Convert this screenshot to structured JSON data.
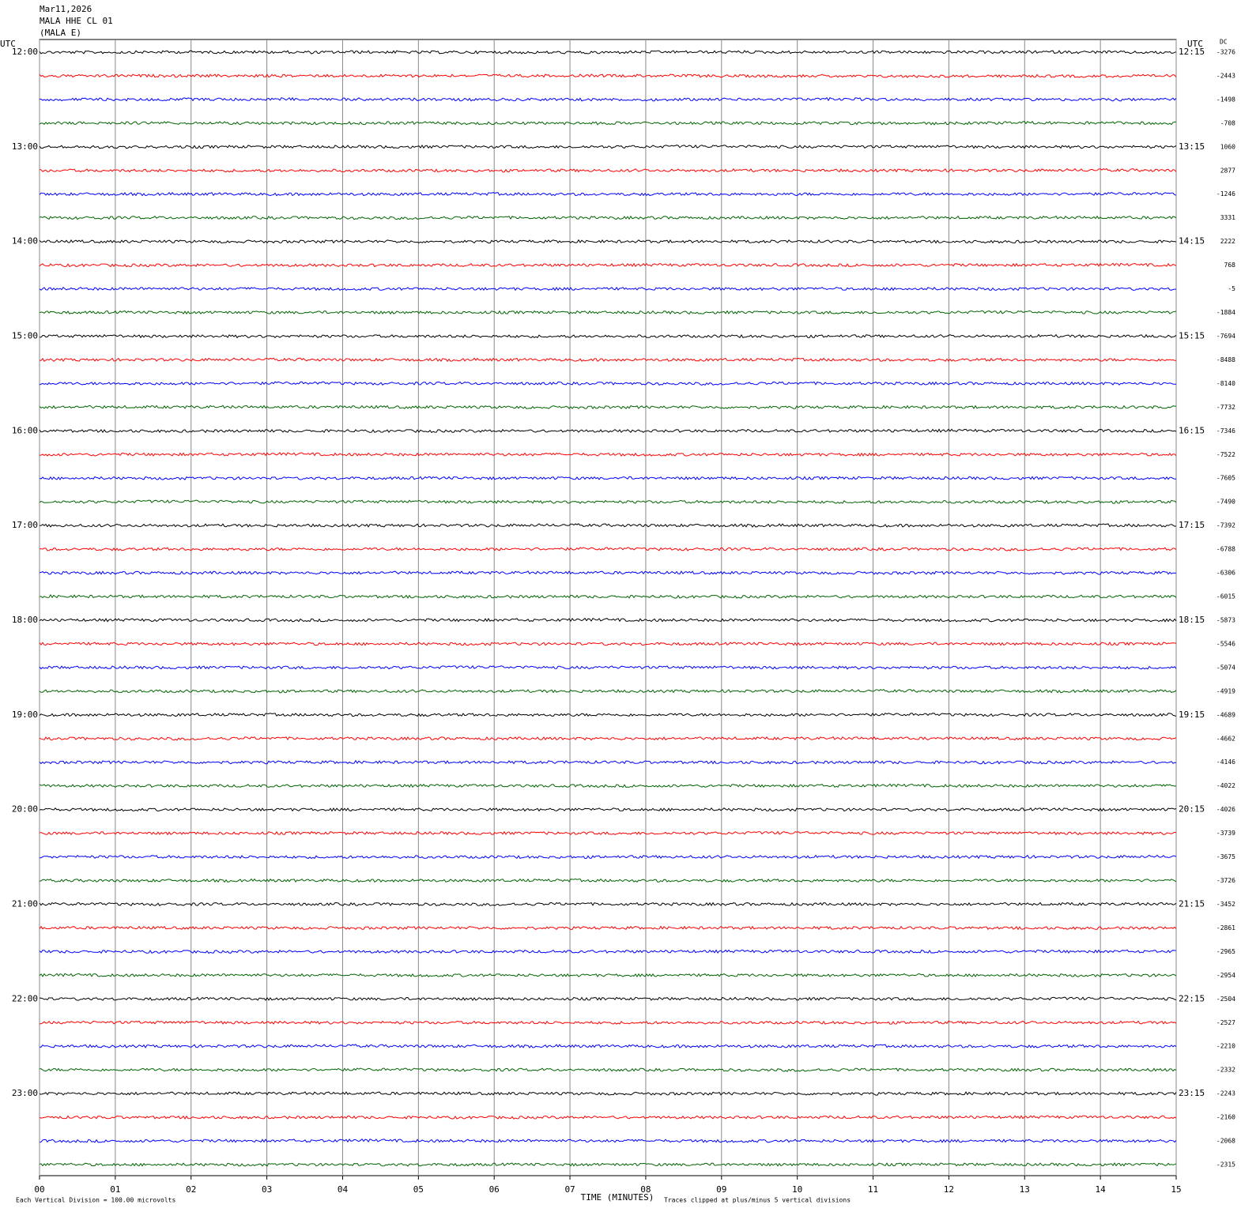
{
  "chart_data": {
    "type": "helicorder",
    "title": [
      "Mar11,2026",
      "MALA HHE CL 01",
      "(MALA E)"
    ],
    "left_axis_title": "UTC",
    "right_axis_title": "UTC",
    "dc_title": "DC",
    "hour_labels_left": [
      "12:00",
      "13:00",
      "14:00",
      "15:00",
      "16:00",
      "17:00",
      "18:00",
      "19:00",
      "20:00",
      "21:00",
      "22:00",
      "23:00"
    ],
    "hour_labels_right": [
      "12:15",
      "13:15",
      "14:15",
      "15:15",
      "16:15",
      "17:15",
      "18:15",
      "19:15",
      "20:15",
      "21:15",
      "22:15",
      "23:15"
    ],
    "dc_values": [
      -3276,
      -2443,
      -1498,
      -708,
      1060,
      2877,
      -1246,
      3331,
      2222,
      768,
      -5,
      -1884,
      -7694,
      -8488,
      -8140,
      -7732,
      -7346,
      -7522,
      -7605,
      -7490,
      -7392,
      -6788,
      -6306,
      -6015,
      -5873,
      -5546,
      -5074,
      -4919,
      -4689,
      -4662,
      -4146,
      -4022,
      -4026,
      -3739,
      -3675,
      -3726,
      -3452,
      -2861,
      -2965,
      -2954,
      -2504,
      -2527,
      -2210,
      -2332,
      -2243,
      -2160,
      -2068,
      -2315
    ],
    "trace_colors": [
      "#000000",
      "#ff0000",
      "#0000ff",
      "#006400"
    ],
    "xlim": [
      0,
      15
    ],
    "xticks": [
      {
        "value": 0,
        "label": "00"
      },
      {
        "value": 1,
        "label": "01"
      },
      {
        "value": 2,
        "label": "02"
      },
      {
        "value": 3,
        "label": "03"
      },
      {
        "value": 4,
        "label": "04"
      },
      {
        "value": 5,
        "label": "05"
      },
      {
        "value": 6,
        "label": "06"
      },
      {
        "value": 7,
        "label": "07"
      },
      {
        "value": 8,
        "label": "08"
      },
      {
        "value": 9,
        "label": "09"
      },
      {
        "value": 10,
        "label": "10"
      },
      {
        "value": 11,
        "label": "11"
      },
      {
        "value": 12,
        "label": "12"
      },
      {
        "value": 13,
        "label": "13"
      },
      {
        "value": 14,
        "label": "14"
      },
      {
        "value": 15,
        "label": "15"
      }
    ],
    "x_label": "TIME (MINUTES)",
    "footer_left": "Each Vertical Division =  100.00 microvolts",
    "footer_right": "Traces clipped at plus/minus 5 vertical divisions"
  }
}
